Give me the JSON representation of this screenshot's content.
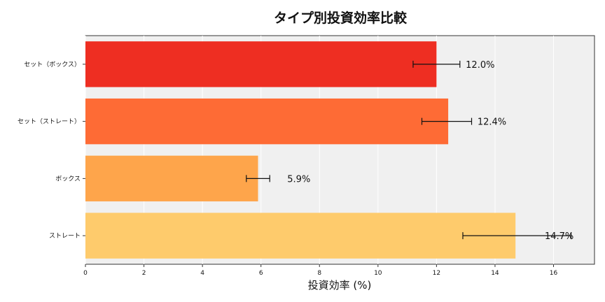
{
  "chart_data": {
    "type": "bar",
    "orientation": "horizontal",
    "title": "タイプ別投資効率比較",
    "xlabel": "投資効率 (%)",
    "ylabel": "",
    "xlim": [
      0,
      17.4
    ],
    "xticks": [
      "0",
      "2",
      "4",
      "6",
      "8",
      "10",
      "12",
      "14",
      "16"
    ],
    "grid": true,
    "categories": [
      "セット（ボックス）",
      "セット（ストレート）",
      "ボックス",
      "ストレート"
    ],
    "values": [
      12.0,
      12.4,
      5.9,
      14.7
    ],
    "errors": [
      [
        11.2,
        12.8
      ],
      [
        11.5,
        13.2
      ],
      [
        5.5,
        6.3
      ],
      [
        12.9,
        16.6
      ]
    ],
    "data_labels": [
      "12.0%",
      "12.4%",
      "5.9%",
      "14.7%"
    ],
    "colors": [
      "#ee2e22",
      "#fe6b35",
      "#fea54b",
      "#fecb6c"
    ],
    "background": "#f0f0f0"
  }
}
